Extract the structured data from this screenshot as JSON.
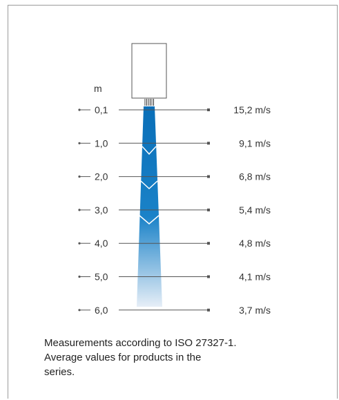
{
  "unit": "m",
  "rows": [
    {
      "distance": "0,1",
      "speed": "15,2 m/s"
    },
    {
      "distance": "1,0",
      "speed": "9,1 m/s"
    },
    {
      "distance": "2,0",
      "speed": "6,8 m/s"
    },
    {
      "distance": "3,0",
      "speed": "5,4 m/s"
    },
    {
      "distance": "4,0",
      "speed": "4,8 m/s"
    },
    {
      "distance": "5,0",
      "speed": "4,1 m/s"
    },
    {
      "distance": "6,0",
      "speed": "3,7 m/s"
    }
  ],
  "caption": {
    "line1": "Measurements according to ISO 27327-1.",
    "line2": "Average values for products in the",
    "line3": "series."
  },
  "colors": {
    "beam_top": "#0a6fb8",
    "beam_mid": "#1a82c8",
    "beam_bottom": "#e6eef7",
    "line": "#555555",
    "frame": "#9a9a9a"
  }
}
